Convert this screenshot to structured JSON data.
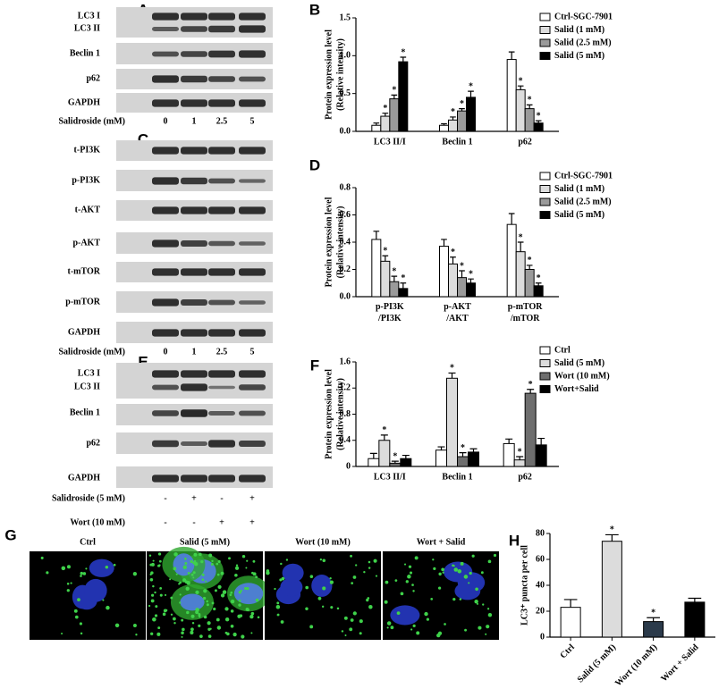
{
  "panels": {
    "A": {
      "panel_label": "A",
      "rows": [
        "LC3 I",
        "LC3 II",
        "Beclin 1",
        "p62",
        "GAPDH"
      ],
      "treatments": [
        {
          "label": "Salidroside (mM)",
          "levels": [
            "0",
            "1",
            "2.5",
            "5"
          ]
        }
      ]
    },
    "C": {
      "panel_label": "C",
      "rows": [
        "t-PI3K",
        "p-PI3K",
        "t-AKT",
        "p-AKT",
        "t-mTOR",
        "p-mTOR",
        "GAPDH"
      ],
      "treatments": [
        {
          "label": "Salidroside (mM)",
          "levels": [
            "0",
            "1",
            "2.5",
            "5"
          ]
        }
      ]
    },
    "E": {
      "panel_label": "E",
      "rows": [
        "LC3 I",
        "LC3 II",
        "Beclin 1",
        "p62",
        "GAPDH"
      ],
      "treatments": [
        {
          "label": "Salidroside (5 mM)",
          "levels": [
            "-",
            "+",
            "-",
            "+"
          ]
        },
        {
          "label": "Wort (10 mM)",
          "levels": [
            "-",
            "-",
            "+",
            "+"
          ]
        }
      ]
    },
    "G": {
      "panel_label": "G",
      "images": [
        "Ctrl",
        "Salid (5 mM)",
        "Wort (10 mM)",
        "Wort + Salid"
      ]
    }
  },
  "chart_data": [
    {
      "type": "bar",
      "panel_label": "B",
      "y_label": [
        "Protein expression level",
        "(Relative intensity)"
      ],
      "categories": [
        "LC3 II/I",
        "Beclin 1",
        "p62"
      ],
      "ylim": [
        0,
        1.5
      ],
      "yticks": [
        {
          "value": 0,
          "label": "0.0"
        },
        {
          "value": 0.5,
          "label": "0.5"
        },
        {
          "value": 1,
          "label": "1.0"
        },
        {
          "value": 1.5,
          "label": "1.5"
        }
      ],
      "series": [
        {
          "name": "Ctrl-SGC-7901",
          "color": "#ffffff",
          "values": [
            0.08,
            0.08,
            0.95
          ],
          "errors": [
            0.03,
            0.02,
            0.1
          ],
          "annotations": [
            null,
            null,
            null
          ]
        },
        {
          "name": "Salid (1 mM)",
          "color": "#dcdcdc",
          "values": [
            0.2,
            0.15,
            0.55
          ],
          "errors": [
            0.04,
            0.04,
            0.05
          ],
          "annotations": [
            "*",
            "*",
            "*"
          ]
        },
        {
          "name": "Salid (2.5 mM)",
          "color": "#9a9a9a",
          "values": [
            0.43,
            0.27,
            0.3
          ],
          "errors": [
            0.05,
            0.03,
            0.05
          ],
          "annotations": [
            "*",
            "*",
            "*"
          ]
        },
        {
          "name": "Salid (5 mM)",
          "color": "#000000",
          "values": [
            0.92,
            0.45,
            0.11
          ],
          "errors": [
            0.06,
            0.08,
            0.03
          ],
          "annotations": [
            "*",
            "*",
            "*"
          ]
        }
      ]
    },
    {
      "type": "bar",
      "panel_label": "D",
      "y_label": [
        "Protein expression level",
        "(Relative intensity)"
      ],
      "categories": [
        "p-PI3K\n/PI3K",
        "p-AKT\n/AKT",
        "p-mTOR\n/mTOR"
      ],
      "ylim": [
        0,
        0.8
      ],
      "yticks": [
        {
          "value": 0,
          "label": "0.0"
        },
        0.2,
        0.4,
        0.6,
        0.8
      ],
      "series": [
        {
          "name": "Ctrl-SGC-7901",
          "color": "#ffffff",
          "values": [
            0.42,
            0.37,
            0.53
          ],
          "errors": [
            0.06,
            0.05,
            0.08
          ],
          "annotations": [
            null,
            null,
            null
          ]
        },
        {
          "name": "Salid (1 mM)",
          "color": "#dcdcdc",
          "values": [
            0.26,
            0.24,
            0.33
          ],
          "errors": [
            0.04,
            0.05,
            0.07
          ],
          "annotations": [
            "*",
            "*",
            "*"
          ]
        },
        {
          "name": "Salid (2.5 mM)",
          "color": "#9a9a9a",
          "values": [
            0.11,
            0.14,
            0.2
          ],
          "errors": [
            0.04,
            0.05,
            0.03
          ],
          "annotations": [
            "*",
            "*",
            "*"
          ]
        },
        {
          "name": "Salid (5 mM)",
          "color": "#000000",
          "values": [
            0.06,
            0.1,
            0.08
          ],
          "errors": [
            0.04,
            0.03,
            0.02
          ],
          "annotations": [
            "*",
            "*",
            "*"
          ]
        }
      ]
    },
    {
      "type": "bar",
      "panel_label": "F",
      "y_label": [
        "Protein expression level",
        "(Relative intensity)"
      ],
      "categories": [
        "LC3 II/I",
        "Beclin 1",
        "p62"
      ],
      "ylim": [
        0,
        1.6
      ],
      "yticks": [
        0,
        0.4,
        0.8,
        1.2,
        1.6
      ],
      "series": [
        {
          "name": "Ctrl",
          "color": "#ffffff",
          "values": [
            0.12,
            0.25,
            0.35
          ],
          "errors": [
            0.08,
            0.05,
            0.07
          ],
          "annotations": [
            null,
            null,
            null
          ]
        },
        {
          "name": "Salid (5 mM)",
          "color": "#dcdcdc",
          "values": [
            0.4,
            1.35,
            0.1
          ],
          "errors": [
            0.08,
            0.08,
            0.05
          ],
          "annotations": [
            "*",
            "*",
            "*"
          ]
        },
        {
          "name": "Wort (10 mM)",
          "color": "#6e6e6e",
          "values": [
            0.05,
            0.15,
            1.12
          ],
          "errors": [
            0.03,
            0.06,
            0.06
          ],
          "annotations": [
            "*",
            "*",
            "*"
          ]
        },
        {
          "name": "Wort+Salid",
          "color": "#000000",
          "values": [
            0.12,
            0.22,
            0.33
          ],
          "errors": [
            0.05,
            0.05,
            0.1
          ],
          "annotations": [
            null,
            null,
            null
          ]
        }
      ]
    },
    {
      "type": "bar",
      "panel_label": "H",
      "y_label": [
        "LC3⁺ puncta per cell"
      ],
      "categories": [
        "Ctrl",
        "Salid (5 mM)",
        "Wort (10 mM)",
        "Wort + Salid"
      ],
      "ylim": [
        0,
        80
      ],
      "yticks": [
        0,
        20,
        40,
        60,
        80
      ],
      "values": [
        23,
        74,
        12,
        27
      ],
      "errors": [
        6,
        5,
        3,
        3
      ],
      "colors": [
        "#ffffff",
        "#dcdcdc",
        "#2b3a4a",
        "#000000"
      ],
      "annotations": [
        null,
        "*",
        "*",
        null
      ]
    }
  ]
}
